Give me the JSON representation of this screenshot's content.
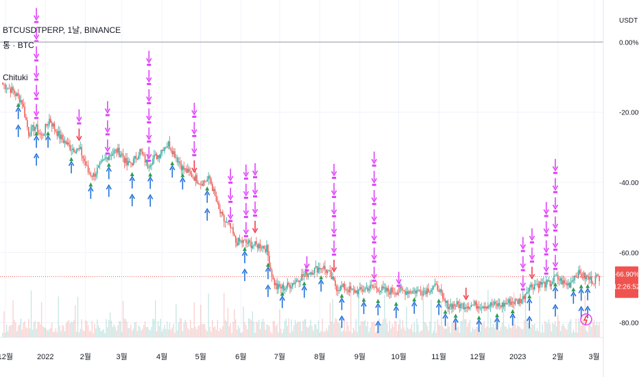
{
  "header": {
    "symbol_line": "BTCUSDTPERP, 1날, BINANCE",
    "compare_line": "통 · BTC",
    "indicator_name": "Chituki"
  },
  "price_badge": {
    "value": "-66.90%",
    "countdown": "12:26:52"
  },
  "colors": {
    "up": "#26a69a",
    "down": "#ef5350",
    "sell_arrow": "#e040fb",
    "sell_arrow_red": "#f23645",
    "buy_arrow": "#1e6fd9",
    "buy_arrow_green": "#2e9e4f",
    "baseline": "#b2b5be",
    "last_price": "#ef5350"
  },
  "chart_data": {
    "type": "candlestick",
    "title": "BTCUSDTPERP, 1날, BINANCE",
    "y_axis": {
      "unit": "USDT",
      "tick_labels": [
        "0.00%",
        "-20.00%",
        "-40.00%",
        "-60.00%",
        "-80.00%"
      ],
      "range": [
        -83,
        12
      ],
      "scale": "percent"
    },
    "x_axis": {
      "tick_labels": [
        "12월",
        "2022",
        "2월",
        "3월",
        "4월",
        "5월",
        "6월",
        "7월",
        "8월",
        "9월",
        "10월",
        "11월",
        "12월",
        "2023",
        "2월",
        "3월"
      ],
      "tick_index": [
        2,
        33,
        64,
        92,
        123,
        153,
        184,
        214,
        245,
        276,
        306,
        337,
        367,
        398,
        429,
        457
      ]
    },
    "baseline": 0,
    "last_value": -66.9,
    "series": [
      {
        "name": "BTCUSDTPERP",
        "anchors": [
          [
            0,
            -12
          ],
          [
            8,
            -14
          ],
          [
            15,
            -17
          ],
          [
            20,
            -26
          ],
          [
            25,
            -24
          ],
          [
            30,
            -27
          ],
          [
            36,
            -22
          ],
          [
            44,
            -27
          ],
          [
            52,
            -30
          ],
          [
            60,
            -31
          ],
          [
            66,
            -37
          ],
          [
            70,
            -38
          ],
          [
            76,
            -35
          ],
          [
            82,
            -32
          ],
          [
            88,
            -31
          ],
          [
            92,
            -32
          ],
          [
            96,
            -35
          ],
          [
            101,
            -34
          ],
          [
            106,
            -31
          ],
          [
            112,
            -35
          ],
          [
            117,
            -33
          ],
          [
            121,
            -32
          ],
          [
            124,
            -30
          ],
          [
            128,
            -29
          ],
          [
            133,
            -32
          ],
          [
            139,
            -36
          ],
          [
            146,
            -38
          ],
          [
            153,
            -40
          ],
          [
            160,
            -39
          ],
          [
            167,
            -48
          ],
          [
            171,
            -51
          ],
          [
            176,
            -53
          ],
          [
            180,
            -57
          ],
          [
            186,
            -57
          ],
          [
            195,
            -58
          ],
          [
            200,
            -58
          ],
          [
            204,
            -59
          ],
          [
            206,
            -63
          ],
          [
            209,
            -68
          ],
          [
            212,
            -70
          ],
          [
            218,
            -70
          ],
          [
            223,
            -69
          ],
          [
            230,
            -67
          ],
          [
            240,
            -65
          ],
          [
            247,
            -64
          ],
          [
            252,
            -66
          ],
          [
            258,
            -70
          ],
          [
            264,
            -70
          ],
          [
            270,
            -71
          ],
          [
            276,
            -71
          ],
          [
            282,
            -70
          ],
          [
            288,
            -70
          ],
          [
            295,
            -71
          ],
          [
            300,
            -71
          ],
          [
            305,
            -71
          ],
          [
            312,
            -71
          ],
          [
            318,
            -71
          ],
          [
            325,
            -71
          ],
          [
            332,
            -70
          ],
          [
            337,
            -70
          ],
          [
            340,
            -74
          ],
          [
            344,
            -75
          ],
          [
            350,
            -75
          ],
          [
            360,
            -75
          ],
          [
            367,
            -75
          ],
          [
            374,
            -75
          ],
          [
            380,
            -75
          ],
          [
            386,
            -75
          ],
          [
            392,
            -74
          ],
          [
            398,
            -74
          ],
          [
            402,
            -73
          ],
          [
            406,
            -70
          ],
          [
            412,
            -69
          ],
          [
            418,
            -69
          ],
          [
            423,
            -69
          ],
          [
            427,
            -67
          ],
          [
            431,
            -68
          ],
          [
            434,
            -69
          ],
          [
            438,
            -69
          ],
          [
            441,
            -67
          ],
          [
            444,
            -66
          ],
          [
            450,
            -67
          ],
          [
            456,
            -68
          ],
          [
            460,
            -67
          ]
        ]
      }
    ],
    "sell_signals": [
      {
        "i": 26,
        "bars": 6
      },
      {
        "i": 59,
        "bars": 2
      },
      {
        "i": 113,
        "bars": 6
      },
      {
        "i": 176,
        "bars": 3
      },
      {
        "i": 256,
        "bars": 6
      },
      {
        "i": 287,
        "bars": 7
      },
      {
        "i": 188,
        "bars": 4
      },
      {
        "i": 195,
        "bars": 4
      },
      {
        "i": 235,
        "bars": 1
      },
      {
        "i": 306,
        "bars": 1
      },
      {
        "i": 358,
        "bars": 1
      },
      {
        "i": 402,
        "bars": 3
      },
      {
        "i": 427,
        "bars": 6
      },
      {
        "i": 409,
        "bars": 3
      },
      {
        "i": 420,
        "bars": 4
      },
      {
        "i": 81,
        "bars": 3
      },
      {
        "i": 148,
        "bars": 4
      }
    ],
    "buy_signals": [
      {
        "i": 12,
        "bars": 2
      },
      {
        "i": 26,
        "bars": 2
      },
      {
        "i": 35,
        "bars": 1
      },
      {
        "i": 53,
        "bars": 1
      },
      {
        "i": 68,
        "bars": 1
      },
      {
        "i": 82,
        "bars": 2
      },
      {
        "i": 100,
        "bars": 2
      },
      {
        "i": 114,
        "bars": 2
      },
      {
        "i": 131,
        "bars": 1
      },
      {
        "i": 139,
        "bars": 1
      },
      {
        "i": 158,
        "bars": 2
      },
      {
        "i": 187,
        "bars": 2
      },
      {
        "i": 205,
        "bars": 2
      },
      {
        "i": 216,
        "bars": 1
      },
      {
        "i": 233,
        "bars": 1
      },
      {
        "i": 246,
        "bars": 1
      },
      {
        "i": 262,
        "bars": 2
      },
      {
        "i": 279,
        "bars": 1
      },
      {
        "i": 290,
        "bars": 2
      },
      {
        "i": 304,
        "bars": 1
      },
      {
        "i": 318,
        "bars": 1
      },
      {
        "i": 342,
        "bars": 1
      },
      {
        "i": 350,
        "bars": 2
      },
      {
        "i": 368,
        "bars": 2
      },
      {
        "i": 382,
        "bars": 1
      },
      {
        "i": 407,
        "bars": 2
      },
      {
        "i": 427,
        "bars": 2
      },
      {
        "i": 447,
        "bars": 2
      },
      {
        "i": 452,
        "bars": 2
      },
      {
        "i": 441,
        "bars": 1
      },
      {
        "i": 394,
        "bars": 1
      },
      {
        "i": 337,
        "bars": 1
      }
    ]
  }
}
